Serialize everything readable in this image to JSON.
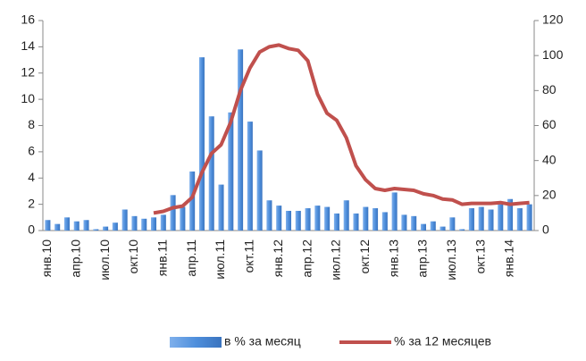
{
  "chart_data": {
    "type": "bar-line",
    "categories": [
      "янв.10",
      null,
      null,
      "апр.10",
      null,
      null,
      "июл.10",
      null,
      null,
      "окт.10",
      null,
      null,
      "янв.11",
      null,
      null,
      "апр.11",
      null,
      null,
      "июл.11",
      null,
      null,
      "окт.11",
      null,
      null,
      "янв.12",
      null,
      null,
      "апр.12",
      null,
      null,
      "июл.12",
      null,
      null,
      "окт.12",
      null,
      null,
      "янв.13",
      null,
      null,
      "апр.13",
      null,
      null,
      "июл.13",
      null,
      null,
      "окт.13",
      null,
      null,
      "янв.14",
      null,
      null
    ],
    "series": [
      {
        "name": "в % за месяц",
        "color": "#4f8fdc",
        "type": "bar",
        "values": [
          0.8,
          0.5,
          1.0,
          0.7,
          0.8,
          0.1,
          0.3,
          0.6,
          1.6,
          1.1,
          0.9,
          1.0,
          1.2,
          2.7,
          1.8,
          4.5,
          13.2,
          8.7,
          3.5,
          9.0,
          13.8,
          8.3,
          6.1,
          2.3,
          1.9,
          1.5,
          1.5,
          1.7,
          1.9,
          1.8,
          1.3,
          2.3,
          1.3,
          1.8,
          1.7,
          1.4,
          2.9,
          1.2,
          1.1,
          0.5,
          0.7,
          0.3,
          1.0,
          0.1,
          1.7,
          1.8,
          1.6,
          2.0,
          2.4,
          1.7,
          2.0
        ]
      },
      {
        "name": "% за 12 месяцев",
        "color": "#c0504d",
        "type": "line",
        "axis": "y2",
        "values": [
          null,
          null,
          null,
          null,
          null,
          null,
          null,
          null,
          null,
          null,
          null,
          10,
          11,
          13,
          14,
          19,
          33,
          44,
          49,
          62,
          80,
          93,
          102,
          105,
          106,
          104,
          103,
          97,
          78,
          67,
          63,
          53,
          37,
          29,
          24,
          23,
          24,
          23.5,
          23,
          21,
          20,
          18,
          17.5,
          15,
          15.5,
          15.5,
          15.5,
          16,
          15,
          15.5,
          16
        ]
      }
    ],
    "ylim": [
      0,
      16
    ],
    "yticks": [
      0,
      2,
      4,
      6,
      8,
      10,
      12,
      14,
      16
    ],
    "y2lim": [
      0,
      120
    ],
    "y2ticks": [
      0,
      20,
      40,
      60,
      80,
      100,
      120
    ],
    "grid": false,
    "legend": "bottom"
  }
}
